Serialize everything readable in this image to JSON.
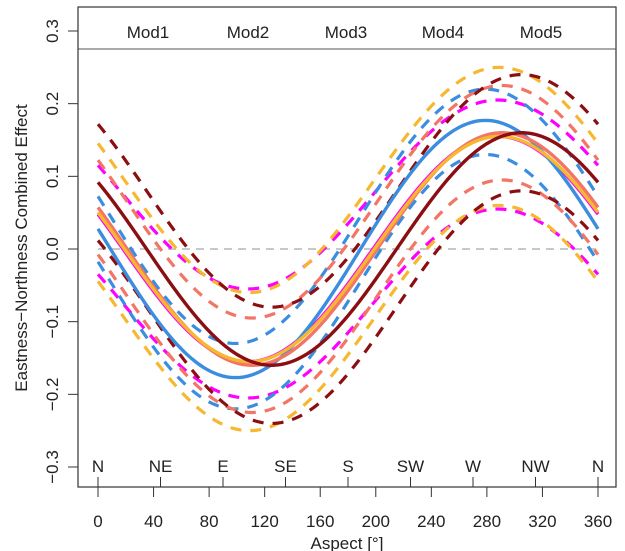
{
  "chart_data": {
    "type": "line",
    "title": "",
    "xlabel": "Aspect [°]",
    "ylabel": "Eastness−Northness Combined Effect",
    "xlim": [
      0,
      360
    ],
    "ylim": [
      -0.3,
      0.3
    ],
    "x_ticks": [
      0,
      40,
      80,
      120,
      160,
      200,
      240,
      280,
      320,
      360
    ],
    "y_ticks": [
      -0.3,
      -0.2,
      -0.1,
      0.0,
      0.1,
      0.2,
      0.3
    ],
    "y_tick_labels": [
      "−0.3",
      "−0.2",
      "−0.1",
      "0.0",
      "0.1",
      "0.2",
      "0.3"
    ],
    "compass_labels": [
      {
        "label": "N",
        "x": 0
      },
      {
        "label": "NE",
        "x": 45
      },
      {
        "label": "E",
        "x": 90
      },
      {
        "label": "SE",
        "x": 135
      },
      {
        "label": "S",
        "x": 180
      },
      {
        "label": "SW",
        "x": 225
      },
      {
        "label": "W",
        "x": 270
      },
      {
        "label": "NW",
        "x": 315
      },
      {
        "label": "N",
        "x": 360
      }
    ],
    "reference_line": {
      "y": 0,
      "style": "dashed",
      "color": "#c8c8c8"
    },
    "legend_position": "top",
    "series": [
      {
        "name": "Mod1",
        "color": "#ff00ff",
        "mean": {
          "amplitude": 0.155,
          "peak": 288
        },
        "lower": {
          "amplitude": 0.13,
          "peak": 288,
          "offset": -0.075
        },
        "upper": {
          "amplitude": 0.13,
          "peak": 288,
          "offset": 0.075
        }
      },
      {
        "name": "Mod2",
        "color": "#3b8de0",
        "mean": {
          "amplitude": 0.177,
          "peak": 279
        },
        "lower": {
          "amplitude": 0.175,
          "peak": 279,
          "offset": -0.045
        },
        "upper": {
          "amplitude": 0.175,
          "peak": 279,
          "offset": 0.045
        }
      },
      {
        "name": "Mod3",
        "color": "#f37565",
        "mean": {
          "amplitude": 0.16,
          "peak": 291
        },
        "lower": {
          "amplitude": 0.16,
          "peak": 291,
          "offset": -0.065
        },
        "upper": {
          "amplitude": 0.16,
          "peak": 291,
          "offset": 0.065
        }
      },
      {
        "name": "Mod4",
        "color": "#f5b82e",
        "mean": {
          "amplitude": 0.155,
          "peak": 289
        },
        "lower": {
          "amplitude": 0.155,
          "peak": 289,
          "offset": -0.095
        },
        "upper": {
          "amplitude": 0.155,
          "peak": 289,
          "offset": 0.095
        }
      },
      {
        "name": "Mod5",
        "color": "#8b0f12",
        "mean": {
          "amplitude": 0.16,
          "peak": 305
        },
        "lower": {
          "amplitude": 0.16,
          "peak": 305,
          "offset": -0.08
        },
        "upper": {
          "amplitude": 0.16,
          "peak": 305,
          "offset": 0.08
        }
      }
    ]
  }
}
